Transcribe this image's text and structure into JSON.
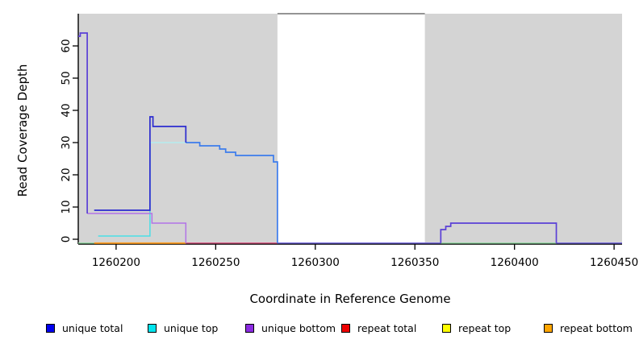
{
  "chart_data": {
    "type": "line",
    "title": "",
    "xlabel": "Coordinate in Reference Genome",
    "ylabel": "Read Coverage Depth",
    "xlim": [
      1260181,
      1260454
    ],
    "ylim": [
      -1.5,
      70
    ],
    "x_ticks": [
      1260200,
      1260250,
      1260300,
      1260350,
      1260400,
      1260450
    ],
    "y_ticks": [
      0,
      10,
      20,
      30,
      40,
      50,
      60
    ],
    "grid": "off",
    "legend_position": "bottom",
    "shaded_regions": [
      {
        "name": "repeat-region-1",
        "x1": 1260181,
        "x2": 1260281
      },
      {
        "name": "repeat-region-2",
        "x1": 1260355,
        "x2": 1260454
      }
    ],
    "shaded_color": "#d4d4d4",
    "gap_top_border_color": "#555555",
    "series": [
      {
        "name": "unique total",
        "color": "#0000ee",
        "step_points": [
          [
            1260181,
            63
          ],
          [
            1260182,
            64
          ],
          [
            1260185.5,
            8
          ],
          [
            1260189,
            9
          ],
          [
            1260217,
            38
          ],
          [
            1260218.5,
            35
          ],
          [
            1260235,
            30
          ],
          [
            1260242,
            29
          ],
          [
            1260252,
            28
          ],
          [
            1260255,
            27
          ],
          [
            1260260,
            26
          ],
          [
            1260279,
            24
          ],
          [
            1260281,
            0
          ],
          [
            1260363,
            3
          ],
          [
            1260365.5,
            4
          ],
          [
            1260368,
            5
          ],
          [
            1260421,
            0
          ],
          [
            1260454,
            0
          ]
        ]
      },
      {
        "name": "unique top",
        "color": "#00e5ee",
        "step_points": [
          [
            1260181,
            0
          ],
          [
            1260191,
            1
          ],
          [
            1260217,
            30
          ],
          [
            1260235,
            30
          ],
          [
            1260242,
            29
          ],
          [
            1260252,
            28
          ],
          [
            1260255,
            27
          ],
          [
            1260260,
            26
          ],
          [
            1260279,
            24
          ],
          [
            1260281,
            0
          ],
          [
            1260454,
            0
          ]
        ]
      },
      {
        "name": "unique bottom",
        "color": "#8b2be2",
        "step_points": [
          [
            1260181,
            63
          ],
          [
            1260182,
            64
          ],
          [
            1260185.5,
            8
          ],
          [
            1260218,
            5
          ],
          [
            1260235,
            0
          ],
          [
            1260363,
            3
          ],
          [
            1260365.5,
            4
          ],
          [
            1260368,
            5
          ],
          [
            1260421,
            0
          ],
          [
            1260454,
            0
          ]
        ]
      },
      {
        "name": "repeat total",
        "color": "#ee0000",
        "step_points": [
          [
            1260181,
            0
          ],
          [
            1260454,
            0
          ]
        ]
      },
      {
        "name": "repeat top",
        "color": "#ffff00",
        "step_points": [
          [
            1260181,
            0
          ],
          [
            1260454,
            0
          ]
        ]
      },
      {
        "name": "repeat bottom",
        "color": "#ffa500",
        "step_points": [
          [
            1260189,
            1
          ],
          [
            1260235,
            0
          ],
          [
            1260454,
            0
          ]
        ]
      }
    ],
    "render_polylines": [
      {
        "name": "baseline-green-left",
        "color": "#8fd8a0",
        "width": 1.4,
        "points": [
          [
            1260181,
            -1.2
          ],
          [
            1260189,
            -1.2
          ]
        ]
      },
      {
        "name": "baseline-orange",
        "color": "#ff9d20",
        "width": 1.8,
        "points": [
          [
            1260189,
            -1.2
          ],
          [
            1260235,
            -1.2
          ]
        ]
      },
      {
        "name": "baseline-crimson",
        "color": "#d85a85",
        "width": 1.5,
        "points": [
          [
            1260235,
            -1.2
          ],
          [
            1260281,
            -1.2
          ]
        ]
      },
      {
        "name": "baseline-slate-gap",
        "color": "#7568dc",
        "width": 1.5,
        "points": [
          [
            1260281,
            -1.2
          ],
          [
            1260363,
            -1.2
          ]
        ]
      },
      {
        "name": "baseline-green-right",
        "color": "#8fd8a0",
        "width": 1.4,
        "points": [
          [
            1260363,
            -1.2
          ],
          [
            1260421,
            -1.2
          ]
        ]
      },
      {
        "name": "baseline-slate-right",
        "color": "#7568dc",
        "width": 1.5,
        "points": [
          [
            1260421,
            -1.2
          ],
          [
            1260454,
            -1.2
          ]
        ]
      },
      {
        "name": "unique-top-low",
        "color": "#4adee6",
        "width": 1.5,
        "points": [
          [
            1260191,
            1
          ],
          [
            1260217,
            1
          ],
          [
            1260217,
            30
          ]
        ]
      },
      {
        "name": "unique-top-high",
        "color": "#b4ecee",
        "width": 1.5,
        "points": [
          [
            1260217,
            30
          ],
          [
            1260235,
            30
          ]
        ]
      },
      {
        "name": "unique-bottom-line",
        "color": "#b273e6",
        "width": 1.5,
        "points": [
          [
            1260185.5,
            8
          ],
          [
            1260218,
            8
          ],
          [
            1260218,
            5
          ],
          [
            1260235,
            5
          ],
          [
            1260235,
            -1.2
          ]
        ]
      },
      {
        "name": "total-descending",
        "color": "#3c7cec",
        "width": 1.7,
        "points": [
          [
            1260235,
            30
          ],
          [
            1260242,
            30
          ],
          [
            1260242,
            29
          ],
          [
            1260252,
            29
          ],
          [
            1260252,
            28
          ],
          [
            1260255,
            28
          ],
          [
            1260255,
            27
          ],
          [
            1260260,
            27
          ],
          [
            1260260,
            26
          ],
          [
            1260279,
            26
          ],
          [
            1260279,
            24
          ],
          [
            1260281,
            24
          ],
          [
            1260281,
            -1.2
          ]
        ]
      },
      {
        "name": "unique-total-dark",
        "color": "#2b2bcf",
        "width": 1.7,
        "points": [
          [
            1260189,
            9
          ],
          [
            1260217,
            9
          ],
          [
            1260217,
            38
          ],
          [
            1260218.5,
            38
          ],
          [
            1260218.5,
            35
          ],
          [
            1260235,
            35
          ],
          [
            1260235,
            30
          ]
        ]
      },
      {
        "name": "left-spike",
        "color": "#5a3fd6",
        "width": 1.7,
        "points": [
          [
            1260181,
            63
          ],
          [
            1260182,
            63
          ],
          [
            1260182,
            64
          ],
          [
            1260185.5,
            64
          ],
          [
            1260185.5,
            8
          ]
        ]
      },
      {
        "name": "right-plateau",
        "color": "#5a3fd6",
        "width": 1.7,
        "points": [
          [
            1260363,
            -1.2
          ],
          [
            1260363,
            3
          ],
          [
            1260365.5,
            3
          ],
          [
            1260365.5,
            4
          ],
          [
            1260368,
            4
          ],
          [
            1260368,
            5
          ],
          [
            1260421,
            5
          ],
          [
            1260421,
            -1.2
          ]
        ]
      }
    ],
    "legend": [
      {
        "label": "unique total",
        "color": "#0000ee"
      },
      {
        "label": "unique top",
        "color": "#00e5ee"
      },
      {
        "label": "unique bottom",
        "color": "#8b2be2"
      },
      {
        "label": "repeat total",
        "color": "#ee0000"
      },
      {
        "label": "repeat top",
        "color": "#ffff00"
      },
      {
        "label": "repeat bottom",
        "color": "#ffa500"
      }
    ]
  },
  "axis_color": "#000000",
  "tick_label_color": "#000000"
}
